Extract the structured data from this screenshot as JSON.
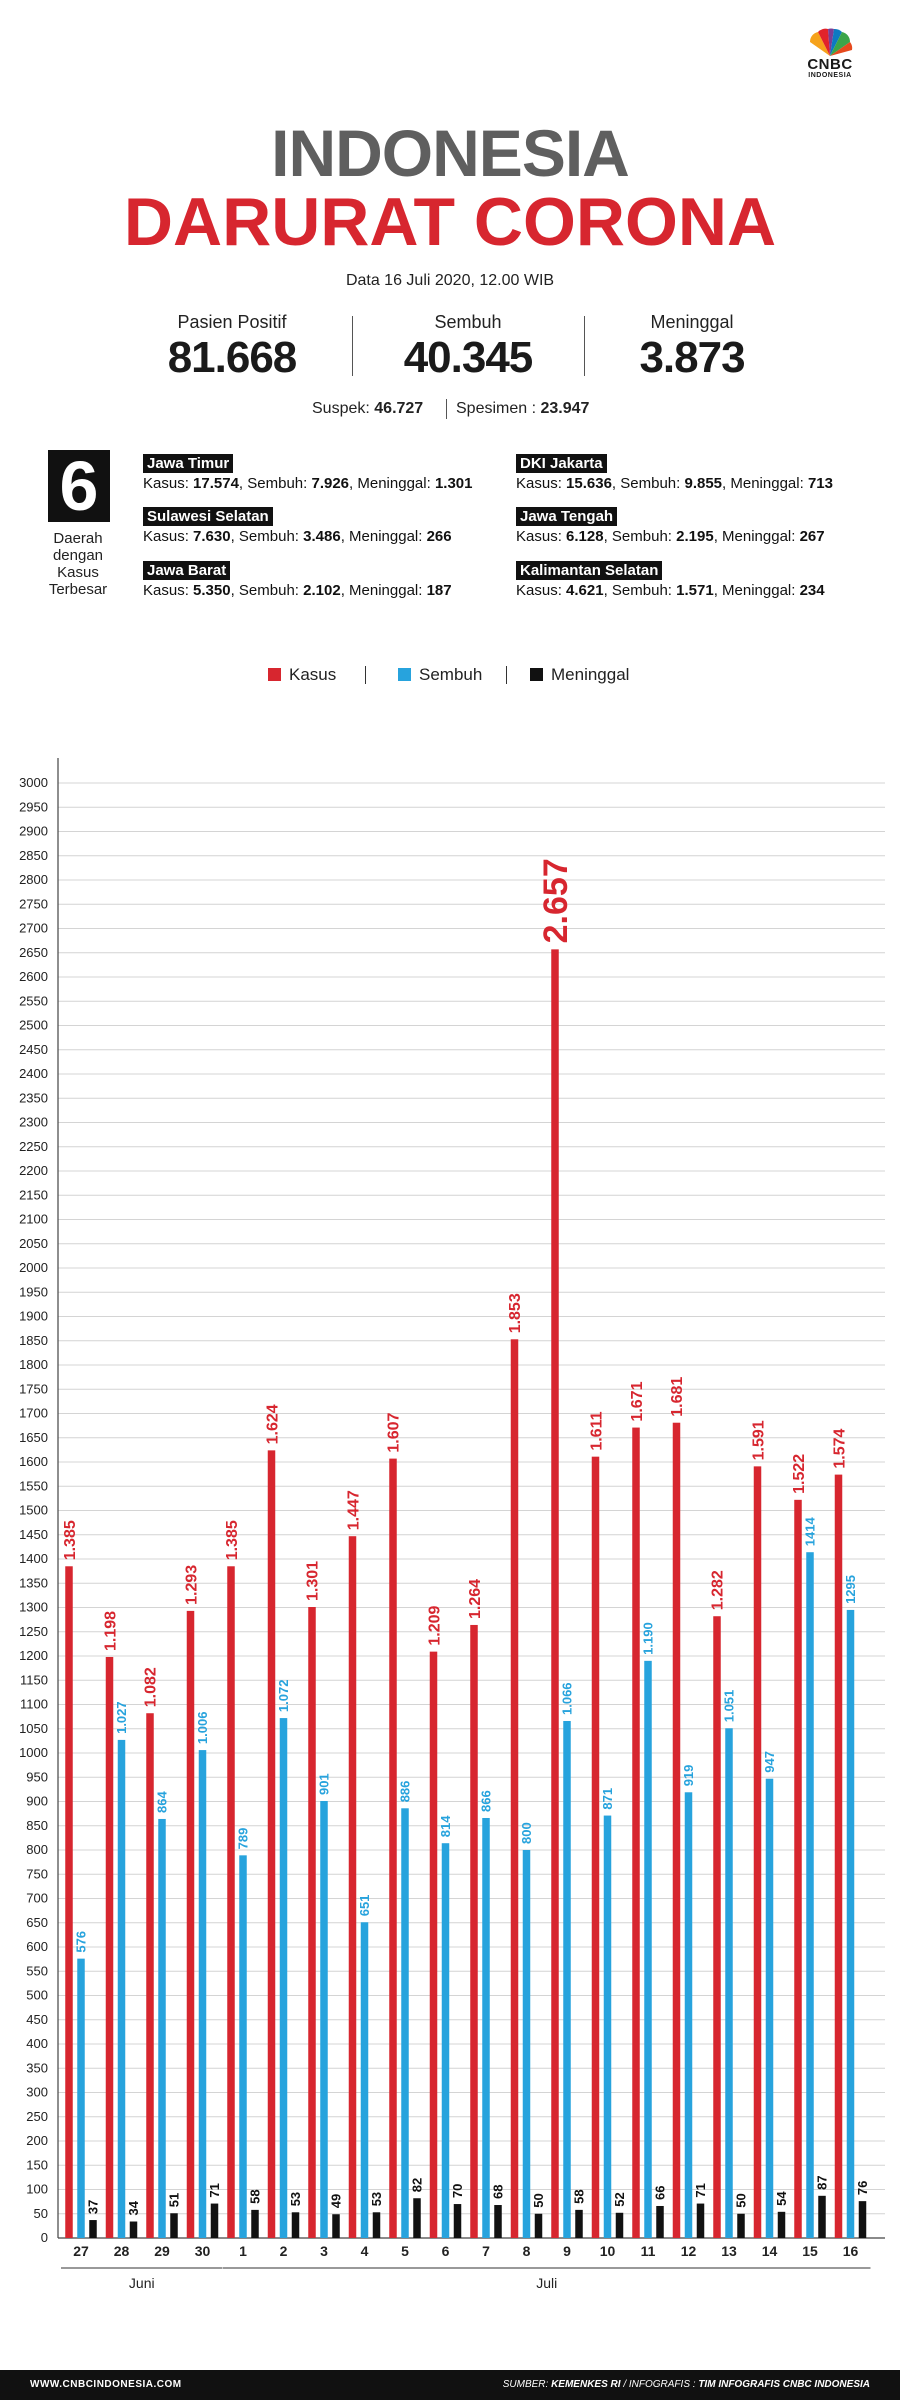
{
  "brand": {
    "name": "CNBC",
    "sub": "INDONESIA"
  },
  "header": {
    "title_line1": "INDONESIA",
    "title_line2": "DARURAT CORONA",
    "date": "Data 16 Juli 2020, 12.00 WIB"
  },
  "stats": {
    "positive": {
      "label": "Pasien Positif",
      "value": "81.668"
    },
    "recovered": {
      "label": "Sembuh",
      "value": "40.345"
    },
    "deaths": {
      "label": "Meninggal",
      "value": "3.873"
    },
    "suspect_label": "Suspek:",
    "suspect_value": "46.727",
    "specimen_label": "Spesimen :",
    "specimen_value": "23.947"
  },
  "regions": {
    "count": "6",
    "caption": "Daerah dengan Kasus Terbesar",
    "kasus_label": "Kasus:",
    "sembuh_label": "Sembuh:",
    "meninggal_label": "Meninggal:",
    "items": [
      {
        "name": "Jawa Timur",
        "kasus": "17.574",
        "sembuh": "7.926",
        "meninggal": "1.301"
      },
      {
        "name": "Sulawesi Selatan",
        "kasus": "7.630",
        "sembuh": "3.486",
        "meninggal": "266"
      },
      {
        "name": "Jawa Barat",
        "kasus": "5.350",
        "sembuh": "2.102",
        "meninggal": "187"
      },
      {
        "name": "DKI Jakarta",
        "kasus": "15.636",
        "sembuh": "9.855",
        "meninggal": "713"
      },
      {
        "name": "Jawa Tengah",
        "kasus": "6.128",
        "sembuh": "2.195",
        "meninggal": "267"
      },
      {
        "name": "Kalimantan Selatan",
        "kasus": "4.621",
        "sembuh": "1.571",
        "meninggal": "234"
      }
    ]
  },
  "chart_data": {
    "type": "bar",
    "title": "",
    "xlabel": "",
    "ylabel": "",
    "ylim": [
      0,
      3000
    ],
    "grid": true,
    "legend_position": "top-center",
    "categories": [
      "27",
      "28",
      "29",
      "30",
      "1",
      "2",
      "3",
      "4",
      "5",
      "6",
      "7",
      "8",
      "9",
      "10",
      "11",
      "12",
      "13",
      "14",
      "15",
      "16"
    ],
    "month_groups": [
      {
        "label": "Juni",
        "start": 0,
        "end": 3
      },
      {
        "label": "Juli",
        "start": 4,
        "end": 19
      }
    ],
    "series": [
      {
        "name": "Kasus",
        "color": "#d7262f",
        "values": [
          1385,
          1198,
          1082,
          1293,
          1385,
          1624,
          1301,
          1447,
          1607,
          1209,
          1264,
          1853,
          2657,
          1611,
          1671,
          1681,
          1282,
          1591,
          1522,
          1574
        ],
        "labels": [
          "1.385",
          "1.198",
          "1.082",
          "1.293",
          "1.385",
          "1.624",
          "1.301",
          "1.447",
          "1.607",
          "1.209",
          "1.264",
          "1.853",
          "2.657",
          "1.611",
          "1.671",
          "1.681",
          "1.282",
          "1.591",
          "1.522",
          "1.574"
        ]
      },
      {
        "name": "Sembuh",
        "color": "#27a3dd",
        "values": [
          576,
          1027,
          864,
          1006,
          789,
          1072,
          901,
          651,
          886,
          814,
          866,
          800,
          1066,
          871,
          1190,
          919,
          1051,
          947,
          1414,
          1295
        ],
        "labels": [
          "576",
          "1.027",
          "864",
          "1.006",
          "789",
          "1.072",
          "901",
          "651",
          "886",
          "814",
          "866",
          "800",
          "1.066",
          "871",
          "1.190",
          "919",
          "1.051",
          "947",
          "1414",
          "1295"
        ]
      },
      {
        "name": "Meninggal",
        "color": "#111111",
        "values": [
          37,
          34,
          51,
          71,
          58,
          53,
          49,
          53,
          82,
          70,
          68,
          50,
          58,
          52,
          66,
          71,
          50,
          54,
          87,
          76
        ],
        "labels": [
          "37",
          "34",
          "51",
          "71",
          "58",
          "53",
          "49",
          "53",
          "82",
          "70",
          "68",
          "50",
          "58",
          "52",
          "66",
          "71",
          "50",
          "54",
          "87",
          "76"
        ]
      }
    ],
    "yticks": [
      0,
      50,
      100,
      150,
      200,
      250,
      300,
      350,
      400,
      450,
      500,
      550,
      600,
      650,
      700,
      750,
      800,
      850,
      900,
      950,
      1000,
      1050,
      1100,
      1150,
      1200,
      1250,
      1300,
      1350,
      1400,
      1450,
      1500,
      1550,
      1600,
      1650,
      1700,
      1750,
      1800,
      1850,
      1900,
      1950,
      2000,
      2050,
      2100,
      2150,
      2200,
      2250,
      2300,
      2350,
      2400,
      2450,
      2500,
      2550,
      2600,
      2650,
      2700,
      2750,
      2800,
      2850,
      2900,
      2950,
      3000
    ]
  },
  "footer": {
    "website": "WWW.CNBCINDONESIA.COM",
    "source_label": "SUMBER:",
    "source_value": "KEMENKES RI",
    "infografis_label": "/ INFOGRAFIS :",
    "infografis_value": "TIM INFOGRAFIS CNBC INDONESIA"
  }
}
